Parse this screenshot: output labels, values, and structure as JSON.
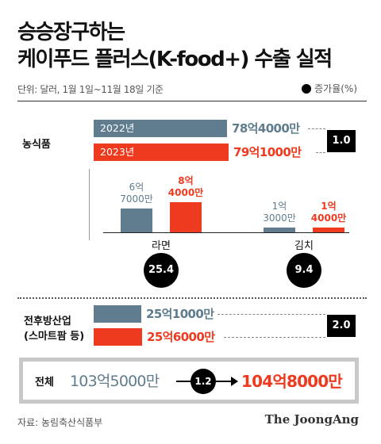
{
  "title_line1": "승승장구하는",
  "title_line2": "케이푸드 플러스(K-food+) 수출 실적",
  "unit_note": "단위: 달러, 1월 1일~11월 18일 기준",
  "growth_legend": "증가율(%)",
  "colors": {
    "y2022": "#5f7d8e",
    "y2023": "#ee3b1f",
    "growth": "#000000"
  },
  "chart_data": {
    "type": "bar",
    "unit": "달러",
    "series_names": [
      "2022년",
      "2023년"
    ],
    "agri_food": {
      "label": "농식품",
      "bars": [
        {
          "year": "2022년",
          "value_label": "78억4000만",
          "value": 7840000000
        },
        {
          "year": "2023년",
          "value_label": "79억1000만",
          "value": 7910000000
        }
      ],
      "growth": "1.0"
    },
    "sub_categories": [
      {
        "name": "라면",
        "v2022_line1": "6억",
        "v2022_line2": "7000만",
        "v2022": 670000000,
        "v2023_line1": "8억",
        "v2023_line2": "4000만",
        "v2023": 840000000,
        "growth": "25.4"
      },
      {
        "name": "김치",
        "v2022_line1": "1억",
        "v2022_line2": "3000만",
        "v2022": 130000000,
        "v2023_line1": "1억",
        "v2023_line2": "4000만",
        "v2023": 140000000,
        "growth": "9.4"
      }
    ],
    "related_industry": {
      "label_line1": "전후방산업",
      "label_line2": "(스마트팜 등)",
      "bars": [
        {
          "year": "2022년",
          "value_label": "25억1000만",
          "value": 2510000000
        },
        {
          "year": "2023년",
          "value_label": "25억6000만",
          "value": 2560000000
        }
      ],
      "growth": "2.0"
    },
    "total": {
      "label": "전체",
      "v2022_label": "103억5000만",
      "v2022": 10350000000,
      "growth": "1.2",
      "v2023_label": "104억8000만",
      "v2023": 10480000000
    }
  },
  "source": "자료: 농림축산식품부",
  "logo": "The JoongAng"
}
